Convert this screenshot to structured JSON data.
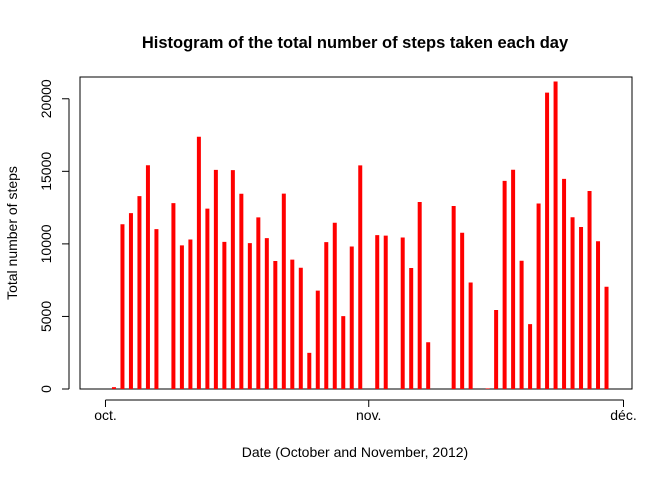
{
  "chart_data": {
    "type": "bar",
    "title": "Histogram of the total number of steps taken each day",
    "xlabel": "Date (October and November, 2012)",
    "ylabel": "Total number of steps",
    "x_ticks": [
      {
        "date": "2012-10-01",
        "label": "oct."
      },
      {
        "date": "2012-11-01",
        "label": "nov."
      },
      {
        "date": "2012-12-01",
        "label": "déc."
      }
    ],
    "y_ticks": [
      0,
      5000,
      10000,
      15000,
      20000
    ],
    "xlim": [
      "2012-09-28",
      "2012-12-02"
    ],
    "ylim": [
      0,
      21500
    ],
    "bar_color": "#ff0000",
    "grid": false,
    "legend": "none",
    "x": [
      "2012-10-01",
      "2012-10-02",
      "2012-10-03",
      "2012-10-04",
      "2012-10-05",
      "2012-10-06",
      "2012-10-07",
      "2012-10-08",
      "2012-10-09",
      "2012-10-10",
      "2012-10-11",
      "2012-10-12",
      "2012-10-13",
      "2012-10-14",
      "2012-10-15",
      "2012-10-16",
      "2012-10-17",
      "2012-10-18",
      "2012-10-19",
      "2012-10-20",
      "2012-10-21",
      "2012-10-22",
      "2012-10-23",
      "2012-10-24",
      "2012-10-25",
      "2012-10-26",
      "2012-10-27",
      "2012-10-28",
      "2012-10-29",
      "2012-10-30",
      "2012-10-31",
      "2012-11-01",
      "2012-11-02",
      "2012-11-03",
      "2012-11-04",
      "2012-11-05",
      "2012-11-06",
      "2012-11-07",
      "2012-11-08",
      "2012-11-09",
      "2012-11-10",
      "2012-11-11",
      "2012-11-12",
      "2012-11-13",
      "2012-11-14",
      "2012-11-15",
      "2012-11-16",
      "2012-11-17",
      "2012-11-18",
      "2012-11-19",
      "2012-11-20",
      "2012-11-21",
      "2012-11-22",
      "2012-11-23",
      "2012-11-24",
      "2012-11-25",
      "2012-11-26",
      "2012-11-27",
      "2012-11-28",
      "2012-11-29",
      "2012-11-30"
    ],
    "values": [
      0,
      126,
      11352,
      12116,
      13294,
      15420,
      11015,
      0,
      12811,
      9900,
      10304,
      17382,
      12426,
      15098,
      10139,
      15084,
      13452,
      10056,
      11829,
      10395,
      8821,
      13460,
      8918,
      8355,
      2492,
      6778,
      10119,
      11458,
      5018,
      9819,
      15414,
      0,
      10600,
      10571,
      0,
      10439,
      8334,
      12883,
      3219,
      0,
      0,
      12608,
      10765,
      7336,
      0,
      41,
      5441,
      14339,
      15110,
      8841,
      4472,
      12787,
      20427,
      21194,
      14478,
      11834,
      11162,
      13646,
      10183,
      7047,
      0
    ]
  }
}
